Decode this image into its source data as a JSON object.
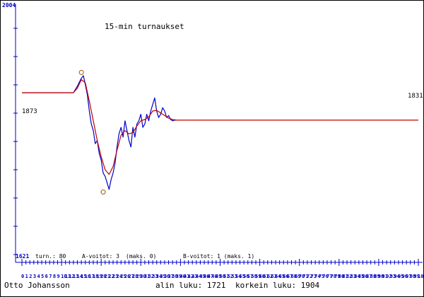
{
  "colors": {
    "axis": "#0000c8",
    "rating_line": "#0000c8",
    "smooth_line": "#c00000",
    "marker": "#a05000",
    "text": "#000000"
  },
  "header": {
    "title": "15-min turnaukset",
    "y_max_label": "2004"
  },
  "labels": {
    "start_rating": "1873",
    "end_rating": "1831"
  },
  "info": {
    "y_min_label": "1621",
    "games": "turn.: 80",
    "a_wins": "A-voitot: 3",
    "a_max": "(maks. 0)",
    "b_wins": "B-voitot: 1 (maks. 1)"
  },
  "footer": {
    "player": "Otto Johansson",
    "lowest": "alin luku: 1721",
    "highest": "korkein luku: 1904"
  },
  "chart_data": {
    "type": "line",
    "title": "15-min turnaukset",
    "ylim": [
      1621,
      2004
    ],
    "xlim": [
      0,
      100
    ],
    "x_ticks": [
      "0",
      "1",
      "2",
      "3",
      "4",
      "5",
      "6",
      "7",
      "8",
      "9",
      "10",
      "11",
      "12",
      "13",
      "14",
      "15",
      "16",
      "17",
      "18",
      "19",
      "20",
      "21",
      "22",
      "23",
      "24",
      "25",
      "26",
      "27",
      "28",
      "29",
      "30",
      "31",
      "32",
      "33",
      "34",
      "35",
      "36",
      "37",
      "38",
      "39",
      "40",
      "41",
      "42",
      "43",
      "44",
      "45",
      "46",
      "47",
      "48",
      "49",
      "50",
      "51",
      "52",
      "53",
      "54",
      "55",
      "56",
      "57",
      "58",
      "59",
      "60",
      "61",
      "62",
      "63",
      "64",
      "65",
      "66",
      "67",
      "68",
      "69",
      "70",
      "71",
      "72",
      "73",
      "74",
      "75",
      "76",
      "77",
      "78",
      "79",
      "80",
      "81",
      "82",
      "83",
      "84",
      "85",
      "86",
      "87",
      "88",
      "89",
      "90",
      "91",
      "92",
      "93",
      "94",
      "95",
      "96",
      "97",
      "98",
      "99",
      "100"
    ],
    "series": [
      {
        "values": [
          [
            0,
            1873
          ],
          [
            13,
            1873
          ],
          [
            14,
            1883
          ],
          [
            15,
            1895
          ],
          [
            15.5,
            1899
          ],
          [
            16,
            1885
          ],
          [
            16.5,
            1870
          ],
          [
            17,
            1845
          ],
          [
            17.5,
            1825
          ],
          [
            18,
            1815
          ],
          [
            18.5,
            1795
          ],
          [
            19,
            1800
          ],
          [
            19.5,
            1780
          ],
          [
            20,
            1770
          ],
          [
            20.5,
            1750
          ],
          [
            21,
            1745
          ],
          [
            21.5,
            1735
          ],
          [
            22,
            1725
          ],
          [
            22.5,
            1740
          ],
          [
            23,
            1750
          ],
          [
            23.5,
            1765
          ],
          [
            24,
            1790
          ],
          [
            24.5,
            1810
          ],
          [
            25,
            1820
          ],
          [
            25.5,
            1805
          ],
          [
            26,
            1830
          ],
          [
            26.5,
            1815
          ],
          [
            27,
            1800
          ],
          [
            27.5,
            1790
          ],
          [
            28,
            1820
          ],
          [
            28.5,
            1805
          ],
          [
            29,
            1825
          ],
          [
            29.5,
            1830
          ],
          [
            30,
            1840
          ],
          [
            30.5,
            1820
          ],
          [
            31,
            1825
          ],
          [
            31.5,
            1840
          ],
          [
            32,
            1830
          ],
          [
            32.5,
            1845
          ],
          [
            33,
            1855
          ],
          [
            33.5,
            1865
          ],
          [
            34,
            1845
          ],
          [
            34.5,
            1835
          ],
          [
            35,
            1840
          ],
          [
            35.5,
            1850
          ],
          [
            36,
            1845
          ],
          [
            36.5,
            1835
          ],
          [
            37,
            1838
          ],
          [
            37.5,
            1832
          ],
          [
            38,
            1830
          ],
          [
            38.5,
            1831
          ],
          [
            39,
            1831
          ]
        ]
      },
      {
        "values": [
          [
            0,
            1873
          ],
          [
            13,
            1873
          ],
          [
            14,
            1880
          ],
          [
            15,
            1893
          ],
          [
            16,
            1888
          ],
          [
            17,
            1860
          ],
          [
            18,
            1830
          ],
          [
            19,
            1800
          ],
          [
            20,
            1775
          ],
          [
            21,
            1755
          ],
          [
            22,
            1748
          ],
          [
            23,
            1760
          ],
          [
            24,
            1785
          ],
          [
            25,
            1808
          ],
          [
            26,
            1815
          ],
          [
            27,
            1810
          ],
          [
            28,
            1812
          ],
          [
            29,
            1822
          ],
          [
            30,
            1830
          ],
          [
            31,
            1832
          ],
          [
            32,
            1836
          ],
          [
            33,
            1845
          ],
          [
            34,
            1846
          ],
          [
            35,
            1842
          ],
          [
            36,
            1838
          ],
          [
            37,
            1834
          ],
          [
            38,
            1832
          ],
          [
            39,
            1831
          ],
          [
            100,
            1831
          ]
        ]
      }
    ],
    "markers": [
      {
        "x": 15,
        "y": 1904
      },
      {
        "x": 20.5,
        "y": 1721
      }
    ]
  }
}
